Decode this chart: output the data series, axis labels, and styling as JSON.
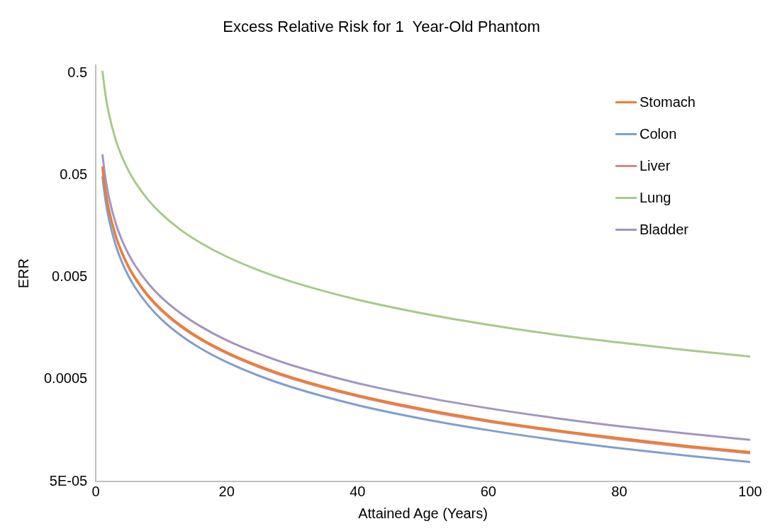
{
  "chart_data": {
    "type": "line",
    "title": "Excess Relative Risk for 1  Year-Old Phantom",
    "xlabel": "Attained Age (Years)",
    "ylabel": "ERR",
    "x": [
      1,
      1.5,
      2,
      3,
      4,
      5,
      6,
      8,
      10,
      13,
      16,
      20,
      25,
      30,
      40,
      50,
      60,
      70,
      80,
      90,
      100
    ],
    "series": [
      {
        "name": "Stomach",
        "color": "#ed7d31",
        "values": [
          0.0612,
          0.0347,
          0.0232,
          0.01315,
          0.00879,
          0.00643,
          0.00498,
          0.00333,
          0.00244,
          0.00169,
          0.00126,
          0.000924,
          0.000676,
          0.000523,
          0.00035,
          0.000256,
          0.000198,
          0.00016,
          0.000133,
          0.000112,
          9.7e-05
        ]
      },
      {
        "name": "Colon",
        "color": "#7f9fcf",
        "values": [
          0.049,
          0.0278,
          0.0186,
          0.01053,
          0.00704,
          0.00515,
          0.00399,
          0.00267,
          0.00195,
          0.00135,
          0.00101,
          0.00074,
          0.000541,
          0.000419,
          0.00028,
          0.000205,
          0.000159,
          0.000128,
          0.000106,
          9e-05,
          7.77e-05
        ]
      },
      {
        "name": "Liver",
        "color": "#d48a84",
        "values": [
          0.0596,
          0.0338,
          0.0226,
          0.0128,
          0.00856,
          0.00626,
          0.00485,
          0.00324,
          0.00237,
          0.00164,
          0.00123,
          0.0009,
          0.000658,
          0.00051,
          0.000341,
          0.000249,
          0.000193,
          0.000156,
          0.000129,
          0.000109,
          9.45e-05
        ]
      },
      {
        "name": "Lung",
        "color": "#a9c98a",
        "values": [
          0.53,
          0.3005,
          0.2009,
          0.1138,
          0.0761,
          0.0557,
          0.0431,
          0.0288,
          0.0211,
          0.0146,
          0.01093,
          0.008,
          0.00585,
          0.00453,
          0.00303,
          0.00222,
          0.00172,
          0.00138,
          0.00115,
          0.000974,
          0.00084
        ]
      },
      {
        "name": "Bladder",
        "color": "#a395c0",
        "values": [
          0.0805,
          0.0456,
          0.0305,
          0.0173,
          0.01156,
          0.00846,
          0.00655,
          0.00438,
          0.0032,
          0.00222,
          0.00166,
          0.00121,
          0.000889,
          0.000688,
          0.00046,
          0.000337,
          0.000261,
          0.00021,
          0.000174,
          0.000148,
          0.000128
        ]
      }
    ],
    "log": "y",
    "xlim": [
      0,
      100
    ],
    "xticks": [
      0,
      20,
      40,
      60,
      80,
      100
    ],
    "ylim": [
      5e-05,
      0.6
    ],
    "yticks": [
      {
        "value": 5e-05,
        "label": "5E-05"
      },
      0.0005,
      0.005,
      0.05,
      0.5
    ],
    "grid": false,
    "legend": "top right",
    "marker": "none",
    "line_style": "solid"
  }
}
